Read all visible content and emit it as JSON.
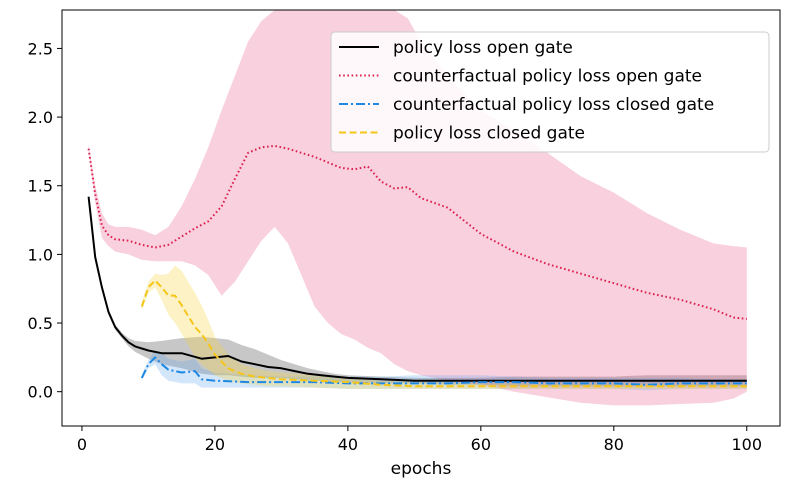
{
  "chart_data": {
    "type": "line",
    "title": "",
    "xlabel": "epochs",
    "ylabel": "",
    "xlim": [
      -3,
      105
    ],
    "ylim": [
      -0.25,
      2.78
    ],
    "xticks": [
      0,
      20,
      40,
      60,
      80,
      100
    ],
    "xtick_labels": [
      "0",
      "20",
      "40",
      "60",
      "80",
      "100"
    ],
    "yticks": [
      0.0,
      0.5,
      1.0,
      1.5,
      2.0,
      2.5
    ],
    "ytick_labels": [
      "0.0",
      "0.5",
      "1.0",
      "1.5",
      "2.0",
      "2.5"
    ],
    "grid": false,
    "legend_position": "top-right",
    "series": [
      {
        "name": "policy loss open gate",
        "color": "#000000",
        "style": "solid",
        "x": [
          1,
          2,
          3,
          4,
          5,
          6,
          7,
          8,
          10,
          12,
          15,
          18,
          20,
          22,
          24,
          26,
          28,
          30,
          32,
          34,
          36,
          38,
          40,
          45,
          50,
          55,
          60,
          65,
          70,
          75,
          80,
          85,
          90,
          95,
          100
        ],
        "y": [
          1.42,
          0.98,
          0.76,
          0.58,
          0.47,
          0.41,
          0.36,
          0.33,
          0.3,
          0.28,
          0.28,
          0.24,
          0.25,
          0.26,
          0.22,
          0.2,
          0.18,
          0.17,
          0.15,
          0.13,
          0.12,
          0.11,
          0.1,
          0.09,
          0.08,
          0.08,
          0.08,
          0.08,
          0.08,
          0.08,
          0.08,
          0.08,
          0.08,
          0.08,
          0.08
        ],
        "band_upper": [
          1.42,
          0.98,
          0.78,
          0.6,
          0.49,
          0.43,
          0.39,
          0.37,
          0.36,
          0.37,
          0.39,
          0.4,
          0.39,
          0.38,
          0.34,
          0.31,
          0.27,
          0.23,
          0.2,
          0.17,
          0.15,
          0.13,
          0.12,
          0.11,
          0.1,
          0.1,
          0.1,
          0.11,
          0.11,
          0.11,
          0.11,
          0.12,
          0.12,
          0.12,
          0.12
        ],
        "band_lower": [
          1.42,
          0.98,
          0.74,
          0.56,
          0.45,
          0.39,
          0.33,
          0.29,
          0.24,
          0.2,
          0.17,
          0.13,
          0.12,
          0.12,
          0.11,
          0.1,
          0.1,
          0.1,
          0.09,
          0.08,
          0.08,
          0.07,
          0.07,
          0.06,
          0.06,
          0.05,
          0.05,
          0.04,
          0.04,
          0.04,
          0.04,
          0.04,
          0.04,
          0.04,
          0.04
        ]
      },
      {
        "name": "counterfactual policy loss open gate",
        "color": "#dc1f4f",
        "style": "dotted",
        "x": [
          1,
          2,
          3,
          4,
          5,
          7,
          9,
          11,
          13,
          15,
          17,
          19,
          21,
          23,
          25,
          27,
          29,
          31,
          33,
          35,
          37,
          39,
          41,
          43,
          45,
          47,
          49,
          51,
          55,
          60,
          65,
          70,
          75,
          80,
          85,
          90,
          95,
          98,
          100
        ],
        "y": [
          1.77,
          1.44,
          1.21,
          1.14,
          1.11,
          1.1,
          1.07,
          1.05,
          1.07,
          1.13,
          1.19,
          1.24,
          1.35,
          1.55,
          1.74,
          1.78,
          1.79,
          1.77,
          1.74,
          1.71,
          1.67,
          1.63,
          1.62,
          1.64,
          1.53,
          1.48,
          1.49,
          1.41,
          1.34,
          1.15,
          1.02,
          0.93,
          0.86,
          0.79,
          0.72,
          0.67,
          0.6,
          0.54,
          0.53
        ],
        "band_upper": [
          1.8,
          1.5,
          1.3,
          1.22,
          1.2,
          1.2,
          1.18,
          1.14,
          1.2,
          1.35,
          1.55,
          1.78,
          2.05,
          2.3,
          2.55,
          2.7,
          2.78,
          2.78,
          2.78,
          2.78,
          2.78,
          2.78,
          2.78,
          2.78,
          2.78,
          2.78,
          2.72,
          2.55,
          2.3,
          2.05,
          1.9,
          1.74,
          1.57,
          1.45,
          1.3,
          1.18,
          1.08,
          1.06,
          1.05
        ],
        "band_lower": [
          1.74,
          1.38,
          1.12,
          1.06,
          1.02,
          1.0,
          0.96,
          0.95,
          0.95,
          0.95,
          0.92,
          0.85,
          0.7,
          0.8,
          0.95,
          1.1,
          1.2,
          1.08,
          0.85,
          0.62,
          0.5,
          0.42,
          0.38,
          0.32,
          0.28,
          0.2,
          0.15,
          0.12,
          0.08,
          0.05,
          0.0,
          -0.04,
          -0.08,
          -0.1,
          -0.1,
          -0.09,
          -0.08,
          -0.05,
          0.0
        ]
      },
      {
        "name": "counterfactual policy loss closed gate",
        "color": "#1e88e5",
        "style": "dashdot",
        "x": [
          9,
          10,
          11,
          12,
          13,
          15,
          17,
          18,
          20,
          25,
          30,
          35,
          40,
          45,
          50,
          55,
          60,
          65,
          70,
          75,
          80,
          85,
          90,
          95,
          100
        ],
        "y": [
          0.1,
          0.2,
          0.25,
          0.2,
          0.16,
          0.14,
          0.15,
          0.09,
          0.08,
          0.07,
          0.07,
          0.07,
          0.06,
          0.06,
          0.06,
          0.06,
          0.07,
          0.07,
          0.06,
          0.06,
          0.06,
          0.05,
          0.06,
          0.06,
          0.06
        ],
        "band_upper": [
          0.12,
          0.23,
          0.3,
          0.28,
          0.24,
          0.22,
          0.24,
          0.17,
          0.14,
          0.12,
          0.11,
          0.11,
          0.11,
          0.11,
          0.12,
          0.12,
          0.12,
          0.11,
          0.1,
          0.1,
          0.1,
          0.1,
          0.1,
          0.09,
          0.09
        ],
        "band_lower": [
          0.08,
          0.17,
          0.2,
          0.12,
          0.08,
          0.06,
          0.06,
          0.03,
          0.03,
          0.03,
          0.03,
          0.03,
          0.02,
          0.02,
          0.02,
          0.02,
          0.02,
          0.02,
          0.02,
          0.02,
          0.02,
          0.01,
          0.02,
          0.02,
          0.02
        ]
      },
      {
        "name": "policy loss closed gate",
        "color": "#f5c518",
        "style": "dashed",
        "x": [
          9,
          10,
          11,
          12,
          13,
          14,
          15,
          16,
          17,
          18,
          19,
          20,
          22,
          24,
          26,
          28,
          30,
          35,
          40,
          45,
          50,
          60,
          70,
          80,
          90,
          100
        ],
        "y": [
          0.62,
          0.76,
          0.81,
          0.76,
          0.7,
          0.7,
          0.63,
          0.55,
          0.47,
          0.42,
          0.35,
          0.27,
          0.17,
          0.13,
          0.11,
          0.1,
          0.09,
          0.08,
          0.07,
          0.05,
          0.04,
          0.04,
          0.04,
          0.04,
          0.04,
          0.04
        ],
        "band_upper": [
          0.65,
          0.8,
          0.86,
          0.85,
          0.86,
          0.92,
          0.88,
          0.8,
          0.72,
          0.63,
          0.52,
          0.4,
          0.27,
          0.2,
          0.17,
          0.15,
          0.14,
          0.12,
          0.1,
          0.08,
          0.07,
          0.06,
          0.06,
          0.06,
          0.06,
          0.06
        ],
        "band_lower": [
          0.59,
          0.72,
          0.76,
          0.67,
          0.56,
          0.5,
          0.42,
          0.34,
          0.25,
          0.2,
          0.16,
          0.12,
          0.08,
          0.06,
          0.05,
          0.04,
          0.04,
          0.03,
          0.02,
          0.02,
          0.02,
          0.02,
          0.02,
          0.02,
          0.02,
          0.02
        ]
      }
    ]
  }
}
